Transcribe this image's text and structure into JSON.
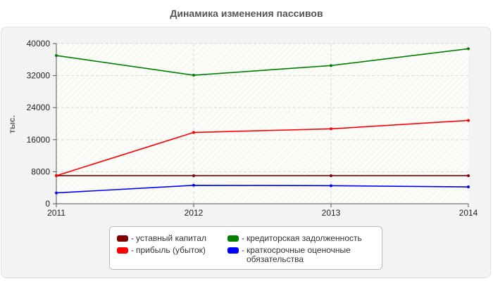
{
  "chart_data": {
    "type": "line",
    "title": "Динамика изменения пассивов",
    "xlabel": "",
    "ylabel": "тыс.",
    "x": [
      "2011",
      "2012",
      "2013",
      "2014"
    ],
    "ylim": [
      0,
      40000
    ],
    "yticks": [
      "0",
      "8000",
      "16000",
      "24000",
      "32000",
      "40000"
    ],
    "yticks_values": [
      0,
      8000,
      16000,
      24000,
      32000,
      40000
    ],
    "grid": true,
    "legend_position": "bottom",
    "series": [
      {
        "name": "уставный капитал",
        "color": "#800000",
        "values": [
          7000,
          7000,
          7000,
          7000
        ]
      },
      {
        "name": "прибыль (убыток)",
        "color": "#ff0000",
        "values": [
          7000,
          17800,
          18700,
          20800
        ]
      },
      {
        "name": "кредиторская задолженность",
        "color": "#008000",
        "values": [
          37000,
          32100,
          34500,
          38700
        ]
      },
      {
        "name": "краткосрочные оценочные обязательства",
        "color": "#0000ff",
        "values": [
          2700,
          4600,
          4500,
          4200
        ]
      }
    ]
  }
}
